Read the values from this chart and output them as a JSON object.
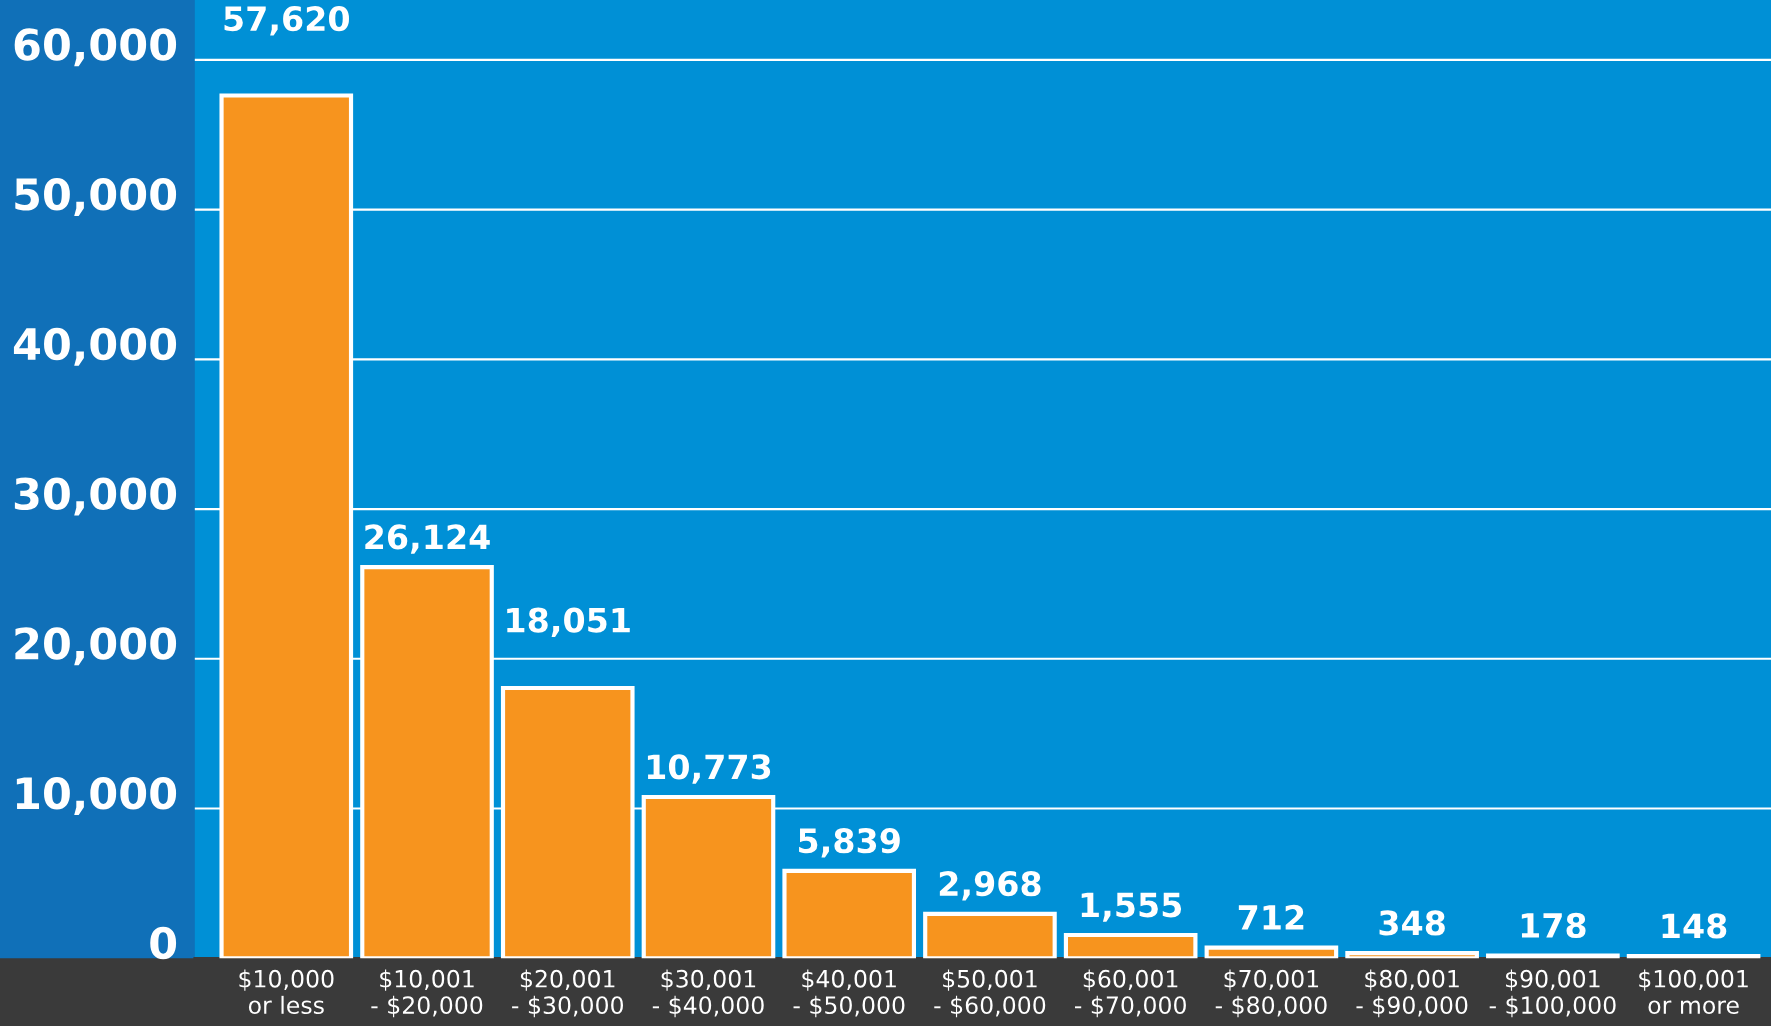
{
  "chart_data": {
    "type": "bar",
    "categories": [
      "$10,000\nor less",
      "$10,001\n- $20,000",
      "$20,001\n- $30,000",
      "$30,001\n- $40,000",
      "$40,001\n- $50,000",
      "$50,001\n- $60,000",
      "$60,001\n- $70,000",
      "$70,001\n- $80,000",
      "$80,001\n- $90,000",
      "$90,001\n- $100,000",
      "$100,001\nor more"
    ],
    "values": [
      57620,
      26124,
      18051,
      10773,
      5839,
      2968,
      1555,
      712,
      348,
      178,
      148
    ],
    "value_labels": [
      "57,620",
      "26,124",
      "18,051",
      "10,773",
      "5,839",
      "2,968",
      "1,555",
      "712",
      "348",
      "178",
      "148"
    ],
    "color": "#f7941e",
    "ylim": [
      0,
      64000
    ],
    "yticks": [
      0,
      {
        "value": 10000,
        "label": "10,000"
      },
      {
        "value": 20000,
        "label": "20,000"
      },
      {
        "value": 30000,
        "label": "30,000"
      },
      {
        "value": 40000,
        "label": "40,000"
      },
      {
        "value": 50000,
        "label": "50,000"
      },
      {
        "value": 60000,
        "label": "60,000"
      }
    ],
    "grid": "y",
    "legend": false
  }
}
